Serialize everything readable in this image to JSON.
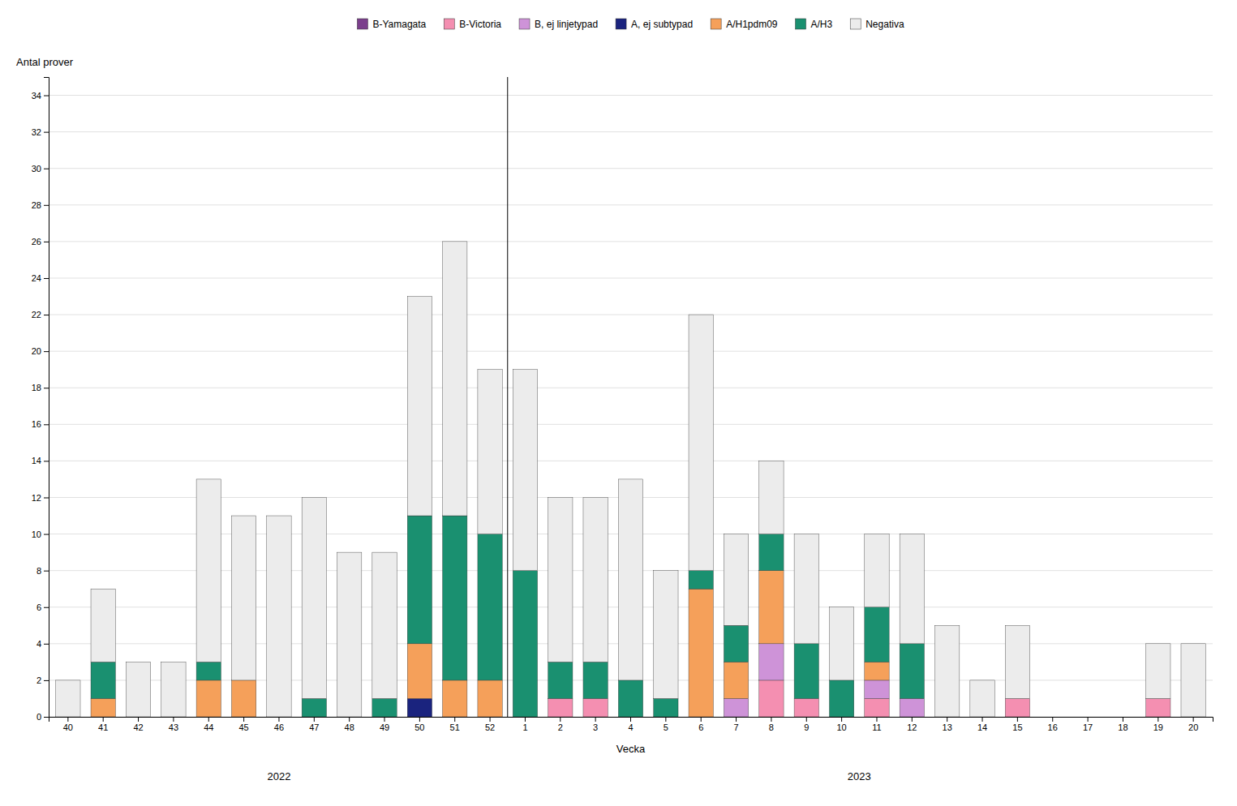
{
  "chart_data": {
    "type": "bar",
    "stacked": true,
    "xlabel": "Vecka",
    "ylabel": "Antal prover",
    "annotations": [
      "2022",
      "2023"
    ],
    "categories": [
      "40",
      "41",
      "42",
      "43",
      "44",
      "45",
      "46",
      "47",
      "48",
      "49",
      "50",
      "51",
      "52",
      "1",
      "2",
      "3",
      "4",
      "5",
      "6",
      "7",
      "8",
      "9",
      "10",
      "11",
      "12",
      "13",
      "14",
      "15",
      "16",
      "17",
      "18",
      "19",
      "20"
    ],
    "series": [
      {
        "name": "B-Yamagata",
        "color": "#7B3F8C",
        "values": [
          0,
          0,
          0,
          0,
          0,
          0,
          0,
          0,
          0,
          0,
          0,
          0,
          0,
          0,
          0,
          0,
          0,
          0,
          0,
          0,
          0,
          0,
          0,
          0,
          0,
          0,
          0,
          0,
          0,
          0,
          0,
          0,
          0
        ]
      },
      {
        "name": "B-Victoria",
        "color": "#F48FB1",
        "values": [
          0,
          0,
          0,
          0,
          0,
          0,
          0,
          0,
          0,
          0,
          0,
          0,
          0,
          0,
          1,
          1,
          0,
          0,
          0,
          0,
          2,
          1,
          0,
          1,
          0,
          0,
          0,
          1,
          0,
          0,
          0,
          1,
          0
        ]
      },
      {
        "name": "B, ej linjetypad",
        "color": "#CE93D8",
        "values": [
          0,
          0,
          0,
          0,
          0,
          0,
          0,
          0,
          0,
          0,
          0,
          0,
          0,
          0,
          0,
          0,
          0,
          0,
          0,
          1,
          2,
          0,
          0,
          1,
          1,
          0,
          0,
          0,
          0,
          0,
          0,
          0,
          0
        ]
      },
      {
        "name": "A, ej subtypad",
        "color": "#1A237E",
        "values": [
          0,
          0,
          0,
          0,
          0,
          0,
          0,
          0,
          0,
          0,
          1,
          0,
          0,
          0,
          0,
          0,
          0,
          0,
          0,
          0,
          0,
          0,
          0,
          0,
          0,
          0,
          0,
          0,
          0,
          0,
          0,
          0,
          0
        ]
      },
      {
        "name": "A/H1pdm09",
        "color": "#F5A05A",
        "values": [
          0,
          1,
          0,
          0,
          2,
          2,
          0,
          0,
          0,
          0,
          3,
          2,
          2,
          0,
          0,
          0,
          0,
          0,
          7,
          2,
          4,
          0,
          0,
          1,
          0,
          0,
          0,
          0,
          0,
          0,
          0,
          0,
          0
        ]
      },
      {
        "name": "A/H3",
        "color": "#1A9070",
        "values": [
          0,
          2,
          0,
          0,
          1,
          0,
          0,
          1,
          0,
          1,
          7,
          9,
          8,
          8,
          2,
          2,
          2,
          1,
          1,
          2,
          2,
          3,
          2,
          3,
          3,
          0,
          0,
          0,
          0,
          0,
          0,
          0,
          0
        ]
      },
      {
        "name": "Negativa",
        "color": "#ECECEC",
        "values": [
          2,
          4,
          3,
          3,
          10,
          9,
          11,
          11,
          9,
          8,
          12,
          15,
          9,
          11,
          9,
          9,
          11,
          7,
          14,
          5,
          4,
          6,
          4,
          4,
          6,
          5,
          2,
          4,
          0,
          0,
          0,
          3,
          4
        ]
      }
    ],
    "ylim": [
      0,
      35
    ],
    "yticks": [
      0,
      2,
      4,
      6,
      8,
      10,
      12,
      14,
      16,
      18,
      20,
      22,
      24,
      26,
      28,
      30,
      32,
      34
    ],
    "grid": true,
    "legend": "top"
  }
}
